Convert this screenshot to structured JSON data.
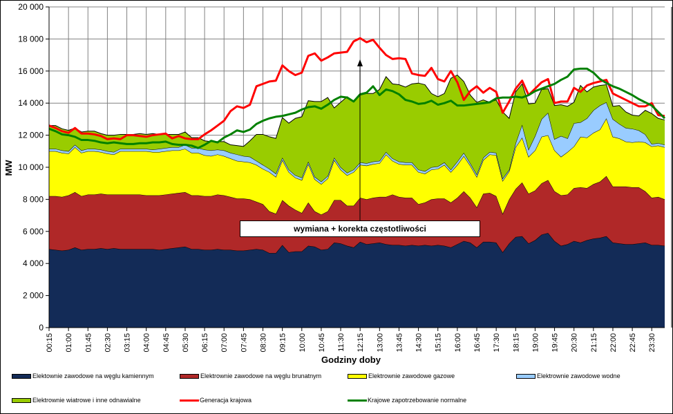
{
  "chart_data": {
    "type": "area",
    "stacked": true,
    "title": "",
    "xlabel": "Godziny doby",
    "ylabel": "MW",
    "ylim": [
      0,
      20000
    ],
    "yticks": [
      0,
      2000,
      4000,
      6000,
      8000,
      10000,
      12000,
      14000,
      16000,
      18000,
      20000
    ],
    "ytick_labels": [
      "0",
      "2 000",
      "4 000",
      "6 000",
      "8 000",
      "10 000",
      "12 000",
      "14 000",
      "16 000",
      "18 000",
      "20 000"
    ],
    "grid": true,
    "legend_position": "bottom",
    "xtick_labels": [
      "00:15",
      "01:00",
      "01:45",
      "02:30",
      "03:15",
      "04:00",
      "04:45",
      "05:30",
      "06:15",
      "07:00",
      "07:45",
      "08:30",
      "09:15",
      "10:00",
      "10:45",
      "11:30",
      "12:15",
      "13:00",
      "13:45",
      "14:30",
      "15:15",
      "16:00",
      "16:45",
      "17:30",
      "18:15",
      "19:00",
      "19:45",
      "20:30",
      "21:15",
      "22:00",
      "22:45",
      "23:30"
    ],
    "x_points": 96,
    "series": [
      {
        "name": "Elektownie zawodowe na węglu kamiennym",
        "kind": "area",
        "color": "#132B57",
        "values": [
          4900,
          4850,
          4800,
          4850,
          5000,
          4850,
          4900,
          4900,
          4950,
          4900,
          4950,
          4900,
          4900,
          4900,
          4900,
          4900,
          4900,
          4850,
          4900,
          4950,
          5000,
          5050,
          4900,
          4900,
          4850,
          4850,
          4900,
          4850,
          4850,
          4800,
          4800,
          4850,
          4900,
          4850,
          4650,
          4650,
          5150,
          4700,
          4750,
          4750,
          5100,
          5050,
          4850,
          4900,
          5300,
          5250,
          5100,
          5000,
          5350,
          5200,
          5250,
          5300,
          5200,
          5150,
          5150,
          5100,
          5150,
          5100,
          5150,
          5100,
          5150,
          5100,
          5000,
          5200,
          5400,
          5300,
          5000,
          5350,
          5350,
          5300,
          4700,
          5250,
          5650,
          5700,
          5250,
          5450,
          5800,
          5900,
          5400,
          5100,
          5200,
          5400,
          5300,
          5450,
          5550,
          5600,
          5700,
          5300,
          5250,
          5200,
          5200,
          5250,
          5300,
          5150,
          5150,
          5100
        ]
      },
      {
        "name": "Elektrownie zawodowe na węglu brunatnym",
        "kind": "area",
        "color": "#B02828",
        "values": [
          3300,
          3350,
          3350,
          3400,
          3450,
          3350,
          3400,
          3400,
          3400,
          3400,
          3350,
          3400,
          3400,
          3400,
          3400,
          3350,
          3350,
          3400,
          3400,
          3400,
          3400,
          3400,
          3350,
          3350,
          3350,
          3350,
          3400,
          3400,
          3300,
          3250,
          3250,
          3150,
          2950,
          2850,
          2600,
          2450,
          2800,
          2900,
          2600,
          2400,
          2700,
          2200,
          2200,
          2350,
          2650,
          2700,
          2500,
          2600,
          2750,
          2800,
          2850,
          2850,
          2950,
          3150,
          3000,
          3000,
          2950,
          2600,
          2650,
          2900,
          2900,
          2950,
          2800,
          2900,
          3100,
          2800,
          2500,
          3000,
          3050,
          2900,
          2400,
          2750,
          3000,
          3350,
          3100,
          3100,
          3200,
          3300,
          3100,
          3150,
          3100,
          3300,
          3450,
          3250,
          3400,
          3500,
          3750,
          3500,
          3550,
          3600,
          3550,
          3500,
          3200,
          2950,
          3000,
          2900
        ]
      },
      {
        "name": "Elektrownie zawodowe gazowe",
        "kind": "area",
        "color": "#FFFF00",
        "values": [
          2800,
          2800,
          2750,
          2600,
          2800,
          2700,
          2700,
          2700,
          2600,
          2550,
          2500,
          2700,
          2700,
          2700,
          2700,
          2750,
          2700,
          2700,
          2700,
          2700,
          2650,
          2700,
          2650,
          2650,
          2550,
          2500,
          2500,
          2450,
          2400,
          2350,
          2300,
          2300,
          2300,
          2200,
          2450,
          2300,
          2500,
          2100,
          2000,
          2050,
          2400,
          2000,
          1900,
          2050,
          2500,
          1900,
          1900,
          2100,
          2050,
          2100,
          2100,
          2100,
          2650,
          2100,
          2050,
          2050,
          2050,
          2000,
          1800,
          1850,
          1850,
          2100,
          1900,
          2050,
          2200,
          2000,
          1900,
          2100,
          2400,
          2550,
          2050,
          1750,
          2600,
          2800,
          2300,
          2500,
          2900,
          2800,
          2550,
          2400,
          2650,
          2600,
          3150,
          3150,
          3200,
          3250,
          3600,
          3100,
          3000,
          2800,
          2800,
          2850,
          3050,
          3200,
          3200,
          3250
        ]
      },
      {
        "name": "Elektrownie zawodowe wodne",
        "kind": "area",
        "color": "#99CCFF",
        "values": [
          150,
          150,
          150,
          150,
          150,
          150,
          150,
          150,
          150,
          150,
          150,
          150,
          150,
          150,
          150,
          150,
          150,
          200,
          200,
          200,
          200,
          250,
          300,
          300,
          350,
          350,
          300,
          350,
          350,
          400,
          350,
          350,
          250,
          250,
          200,
          200,
          150,
          150,
          150,
          150,
          150,
          150,
          150,
          150,
          150,
          150,
          150,
          150,
          150,
          150,
          150,
          150,
          150,
          150,
          150,
          150,
          150,
          150,
          150,
          150,
          150,
          150,
          150,
          200,
          200,
          150,
          150,
          150,
          150,
          150,
          150,
          100,
          250,
          800,
          450,
          900,
          1100,
          1400,
          700,
          1300,
          850,
          1450,
          900,
          1200,
          1400,
          1500,
          1000,
          1100,
          900,
          850,
          850,
          700,
          500,
          150,
          150,
          150
        ]
      },
      {
        "name": "Elektrownie wiatrowe i inne odnawialne",
        "kind": "area",
        "color": "#99CC00",
        "values": [
          1450,
          1450,
          1350,
          1300,
          1050,
          1150,
          1100,
          1100,
          1000,
          1000,
          1050,
          900,
          900,
          900,
          950,
          900,
          1000,
          900,
          850,
          800,
          800,
          800,
          650,
          650,
          550,
          550,
          500,
          550,
          500,
          550,
          600,
          1000,
          1650,
          1900,
          2000,
          2200,
          2500,
          2900,
          3550,
          3800,
          3800,
          4700,
          5000,
          4900,
          3100,
          4050,
          4750,
          4250,
          4200,
          4350,
          4250,
          4450,
          4700,
          4650,
          4800,
          4700,
          4900,
          5400,
          5400,
          4600,
          4350,
          4300,
          5700,
          5400,
          4450,
          4250,
          4500,
          3600,
          3100,
          3300,
          4150,
          3200,
          3200,
          2550,
          2850,
          2050,
          1850,
          1500,
          2100,
          1950,
          2000,
          1300,
          2300,
          1650,
          1450,
          1250,
          1100,
          800,
          1150,
          1000,
          850,
          900,
          1500,
          1900,
          1550,
          1550
        ]
      },
      {
        "name": "Generacja krajowa",
        "kind": "line",
        "color": "#FF0000",
        "values": [
          12600,
          12450,
          12250,
          12150,
          12450,
          12100,
          12100,
          12050,
          11950,
          11750,
          11800,
          11750,
          12000,
          12000,
          11950,
          11900,
          12000,
          12050,
          12100,
          11800,
          11950,
          11800,
          11750,
          11750,
          12050,
          12300,
          12600,
          12900,
          13500,
          13800,
          13700,
          13900,
          15050,
          15200,
          15350,
          15400,
          16350,
          16000,
          15750,
          15900,
          16950,
          17100,
          16650,
          16850,
          17100,
          17150,
          17200,
          17850,
          18050,
          17800,
          17950,
          17450,
          17000,
          16750,
          16800,
          16750,
          15850,
          15750,
          15700,
          16200,
          15500,
          15350,
          16000,
          15300,
          14200,
          14750,
          15050,
          14650,
          14950,
          14700,
          13400,
          14100,
          14900,
          15400,
          14500,
          14900,
          15300,
          15500,
          14000,
          14100,
          14100,
          14950,
          14700,
          15100,
          15250,
          15350,
          15450,
          14600,
          14400,
          14200,
          14000,
          13800,
          13800,
          14000,
          13250,
          13200
        ]
      },
      {
        "name": "Krajowe zapotrzebowanie normalne",
        "kind": "line",
        "color": "#008000",
        "values": [
          12400,
          12250,
          12050,
          12000,
          11900,
          11700,
          11700,
          11650,
          11550,
          11500,
          11550,
          11500,
          11450,
          11450,
          11500,
          11500,
          11550,
          11550,
          11600,
          11450,
          11400,
          11400,
          11350,
          11200,
          11400,
          11650,
          11550,
          11850,
          12050,
          12300,
          12200,
          12350,
          12700,
          12900,
          13050,
          13150,
          13200,
          13300,
          13400,
          13600,
          13750,
          13800,
          13650,
          13900,
          14200,
          14400,
          14350,
          14100,
          14550,
          14650,
          15050,
          14500,
          14850,
          14750,
          14550,
          14200,
          14100,
          13950,
          14000,
          14150,
          13900,
          14000,
          14150,
          13850,
          13850,
          13900,
          13950,
          14000,
          14050,
          14300,
          14350,
          14350,
          14400,
          14350,
          14500,
          14750,
          14900,
          15050,
          15200,
          15450,
          15650,
          16100,
          16150,
          16150,
          15900,
          15500,
          15250,
          15050,
          14900,
          14700,
          14500,
          14250,
          14050,
          13850,
          13450,
          13050
        ]
      }
    ],
    "annotation": {
      "text": "wymiana + korekta częstotliwości",
      "arrow_at": "12:15"
    }
  }
}
